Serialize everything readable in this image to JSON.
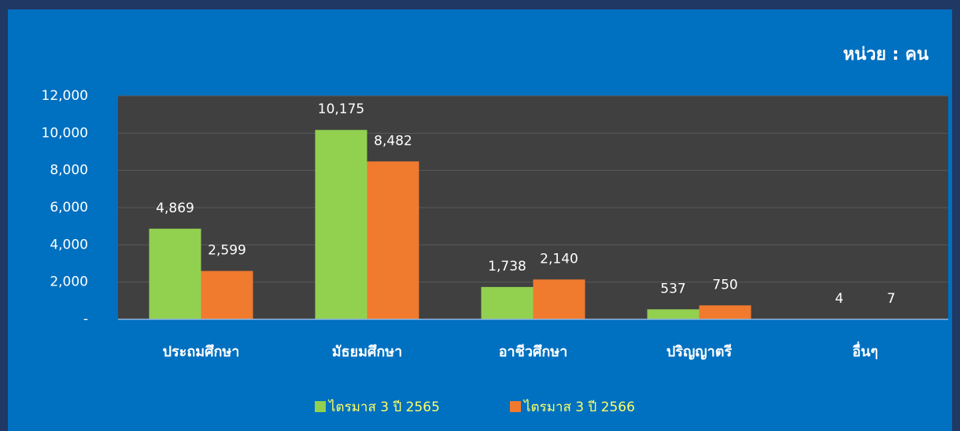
{
  "chart_data": {
    "type": "bar",
    "unit_label": "หน่วย : คน",
    "categories": [
      "ประถมศึกษา",
      "มัธยมศึกษา",
      "อาชีวศึกษา",
      "ปริญญาตรี",
      "อื่นๆ"
    ],
    "series": [
      {
        "name": "ไตรมาส 3 ปี 2565",
        "color": "#92d050",
        "values": [
          4869,
          10175,
          1738,
          537,
          4
        ],
        "value_labels": [
          "4,869",
          "10,175",
          "1,738",
          "537",
          "4"
        ]
      },
      {
        "name": "ไตรมาส 3 ปี 2566",
        "color": "#f07a2e",
        "values": [
          2599,
          8482,
          2140,
          750,
          7
        ],
        "value_labels": [
          "2,599",
          "8,482",
          "2,140",
          "750",
          "7"
        ]
      }
    ],
    "ylim": [
      0,
      12000
    ],
    "yticks": [
      {
        "value": 0,
        "label": "-"
      },
      {
        "value": 2000,
        "label": "2,000"
      },
      {
        "value": 4000,
        "label": "4,000"
      },
      {
        "value": 6000,
        "label": "6,000"
      },
      {
        "value": 8000,
        "label": "8,000"
      },
      {
        "value": 10000,
        "label": "10,000"
      },
      {
        "value": 12000,
        "label": "12,000"
      }
    ],
    "grid": true,
    "legend": "bottom"
  }
}
